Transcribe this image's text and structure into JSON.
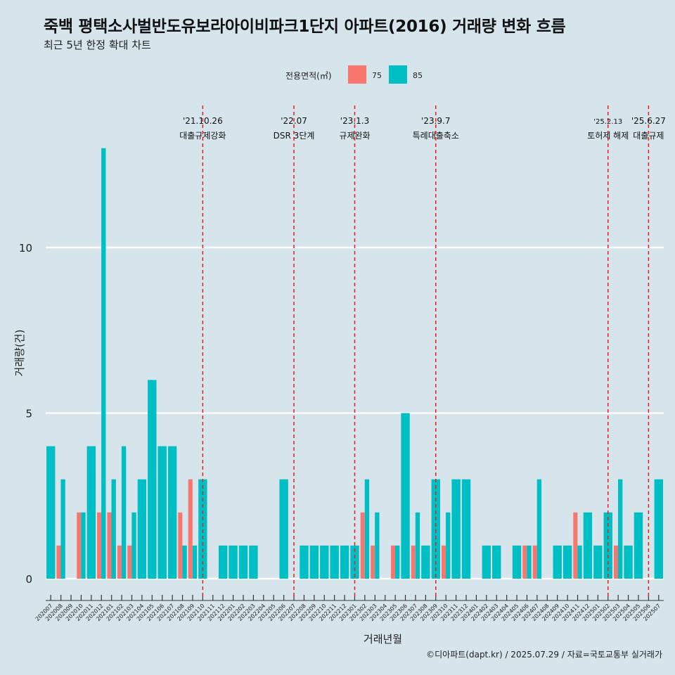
{
  "title": "죽백 평택소사벌반도유보라아이비파크1단지 아파트(2016) 거래량 변화 흐름",
  "subtitle": "최근 5년 한정 확대 차트",
  "legend": {
    "title": "전용면적(㎡)",
    "items": [
      {
        "label": "75",
        "color": "#f8766d"
      },
      {
        "label": "85",
        "color": "#00bfc4"
      }
    ]
  },
  "caption": "©디아파트(dapt.kr) / 2025.07.29 / 자료=국토교통부 실거래가",
  "chart_data": {
    "type": "bar",
    "xlabel": "거래년월",
    "ylabel": "거래량(건)",
    "ylim": [
      -0.5,
      14
    ],
    "yticks": [
      0,
      5,
      10
    ],
    "grid": true,
    "legend_position": "top",
    "categories": [
      "202007",
      "202008",
      "202009",
      "202010",
      "202011",
      "202012",
      "202101",
      "202102",
      "202103",
      "202104",
      "202105",
      "202106",
      "202107",
      "202108",
      "202109",
      "202110",
      "202111",
      "202112",
      "202201",
      "202202",
      "202203",
      "202204",
      "202205",
      "202206",
      "202207",
      "202208",
      "202209",
      "202210",
      "202211",
      "202212",
      "202301",
      "202302",
      "202303",
      "202304",
      "202305",
      "202306",
      "202307",
      "202308",
      "202309",
      "202310",
      "202311",
      "202312",
      "202401",
      "202402",
      "202403",
      "202404",
      "202405",
      "202406",
      "202407",
      "202408",
      "202409",
      "202410",
      "202411",
      "202412",
      "202501",
      "202502",
      "202503",
      "202504",
      "202505",
      "202506",
      "202507"
    ],
    "series": [
      {
        "name": "75",
        "color": "#f8766d",
        "values": [
          0,
          1,
          0,
          2,
          0,
          2,
          2,
          1,
          1,
          0,
          0,
          0,
          0,
          2,
          3,
          0,
          0,
          0,
          0,
          0,
          0,
          0,
          0,
          0,
          0,
          0,
          0,
          0,
          0,
          0,
          0,
          2,
          1,
          0,
          1,
          0,
          1,
          0,
          0,
          1,
          0,
          0,
          0,
          0,
          0,
          0,
          0,
          1,
          1,
          0,
          0,
          0,
          2,
          0,
          0,
          0,
          1,
          0,
          0,
          0,
          0
        ]
      },
      {
        "name": "85",
        "color": "#00bfc4",
        "values": [
          4,
          3,
          0,
          2,
          4,
          13,
          3,
          4,
          2,
          3,
          6,
          4,
          4,
          1,
          1,
          3,
          0,
          1,
          1,
          1,
          1,
          0,
          0,
          3,
          0,
          1,
          1,
          1,
          1,
          1,
          1,
          3,
          2,
          0,
          1,
          5,
          2,
          1,
          3,
          2,
          3,
          3,
          0,
          1,
          1,
          0,
          1,
          1,
          3,
          0,
          1,
          1,
          1,
          2,
          1,
          2,
          3,
          1,
          2,
          0,
          3
        ]
      }
    ],
    "events": [
      {
        "after": "202110",
        "date": "'21.10.26",
        "text": "대출규제강화"
      },
      {
        "after": "202207",
        "date": "'22.07",
        "text": "DSR 3단계"
      },
      {
        "after": "202301",
        "date": "'23.1.3",
        "text": "규제완화"
      },
      {
        "after": "202309",
        "date": "'23.9.7",
        "text": "특례대출축소"
      },
      {
        "after": "202502",
        "date": "'25.2.13",
        "text": "토허제 해제"
      },
      {
        "after": "202506",
        "date": "'25.6.27",
        "text": "대출규제"
      }
    ]
  }
}
